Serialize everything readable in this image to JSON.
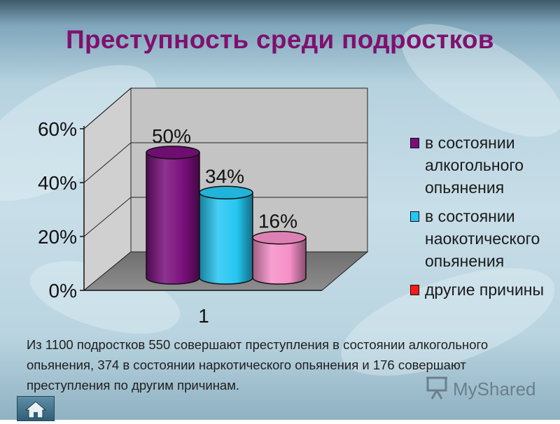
{
  "title": "Преступность среди подростков",
  "chart_data": {
    "type": "bar",
    "categories": [
      "1"
    ],
    "series": [
      {
        "name": "в состоянии алкогольного опьянения",
        "values": [
          50
        ],
        "color": "#7a0f7c",
        "label": "50%"
      },
      {
        "name": "в состоянии наокотического опьянения",
        "values": [
          34
        ],
        "color": "#25c7f2",
        "label": "34%"
      },
      {
        "name": "другие причины",
        "values": [
          16
        ],
        "color": "#f58fc8",
        "label": "16%"
      }
    ],
    "ylim": [
      0,
      60
    ],
    "yticks": [
      "0%",
      "20%",
      "40%",
      "60%"
    ],
    "grid": true,
    "legend_position": "right",
    "legend_colors": [
      "#7a0f7c",
      "#25c7f2",
      "#ff1a1a"
    ],
    "style": "3d-cylinder"
  },
  "legend": [
    {
      "lines": [
        "в состоянии",
        "алкогольного",
        "опьянения"
      ],
      "color": "#7a0f7c"
    },
    {
      "lines": [
        "в состоянии",
        "наокотического",
        "опьянения"
      ],
      "color": "#25c7f2"
    },
    {
      "lines": [
        "другие причины"
      ],
      "color": "#ff1a1a"
    }
  ],
  "caption": "Из 1100 подростков 550 совершают преступления в состоянии алкогольного опьянения, 374 в состоянии наркотического опьянения и 176 совершают преступления по другим причинам.",
  "brand": "MyShared",
  "icons": {
    "home": "home-icon",
    "brand": "presentation-icon"
  }
}
